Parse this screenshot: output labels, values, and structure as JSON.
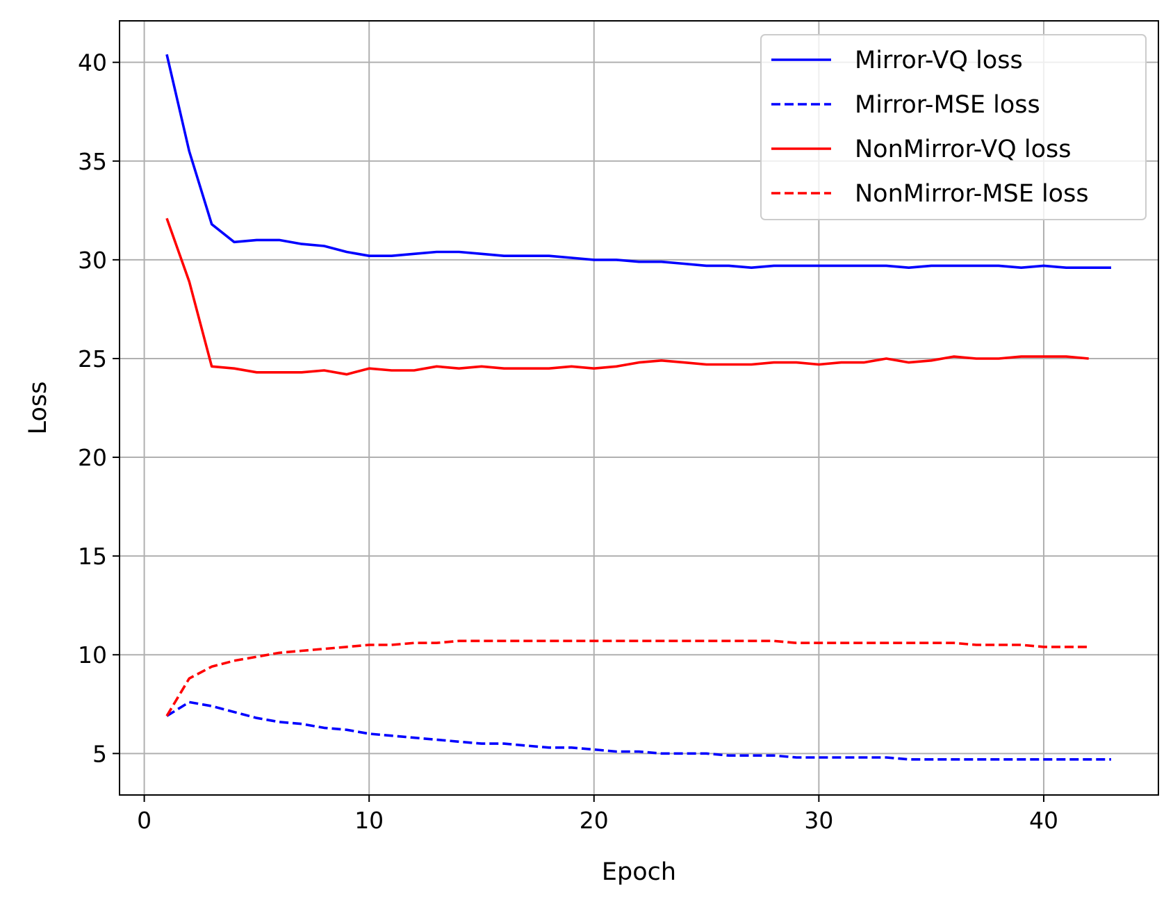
{
  "chart_data": {
    "type": "line",
    "title": "",
    "xlabel": "Epoch",
    "ylabel": "Loss",
    "xlim": [
      -1.1,
      45.1
    ],
    "ylim": [
      2.9,
      42.1
    ],
    "grid": true,
    "legend_position": "upper right",
    "xticks": [
      0,
      10,
      20,
      30,
      40
    ],
    "xtick_labels": [
      "0",
      "10",
      "20",
      "30",
      "40"
    ],
    "yticks": [
      5,
      10,
      15,
      20,
      25,
      30,
      35,
      40
    ],
    "ytick_labels": [
      "5",
      "10",
      "15",
      "20",
      "25",
      "30",
      "35",
      "40"
    ],
    "series": [
      {
        "name": "Mirror-VQ loss",
        "color": "#0000ff",
        "style": "solid",
        "x": [
          1,
          2,
          3,
          4,
          5,
          6,
          7,
          8,
          9,
          10,
          11,
          12,
          13,
          14,
          15,
          16,
          17,
          18,
          19,
          20,
          21,
          22,
          23,
          24,
          25,
          26,
          27,
          28,
          29,
          30,
          31,
          32,
          33,
          34,
          35,
          36,
          37,
          38,
          39,
          40,
          41,
          42,
          43
        ],
        "values": [
          40.4,
          35.5,
          31.8,
          30.9,
          31.0,
          31.0,
          30.8,
          30.7,
          30.4,
          30.2,
          30.2,
          30.3,
          30.4,
          30.4,
          30.3,
          30.2,
          30.2,
          30.2,
          30.1,
          30.0,
          30.0,
          29.9,
          29.9,
          29.8,
          29.7,
          29.7,
          29.6,
          29.7,
          29.7,
          29.7,
          29.7,
          29.7,
          29.7,
          29.6,
          29.7,
          29.7,
          29.7,
          29.7,
          29.6,
          29.7,
          29.6,
          29.6,
          29.6
        ]
      },
      {
        "name": "Mirror-MSE loss",
        "color": "#0000ff",
        "style": "dashed",
        "x": [
          1,
          2,
          3,
          4,
          5,
          6,
          7,
          8,
          9,
          10,
          11,
          12,
          13,
          14,
          15,
          16,
          17,
          18,
          19,
          20,
          21,
          22,
          23,
          24,
          25,
          26,
          27,
          28,
          29,
          30,
          31,
          32,
          33,
          34,
          35,
          36,
          37,
          38,
          39,
          40,
          41,
          42,
          43
        ],
        "values": [
          6.9,
          7.6,
          7.4,
          7.1,
          6.8,
          6.6,
          6.5,
          6.3,
          6.2,
          6.0,
          5.9,
          5.8,
          5.7,
          5.6,
          5.5,
          5.5,
          5.4,
          5.3,
          5.3,
          5.2,
          5.1,
          5.1,
          5.0,
          5.0,
          5.0,
          4.9,
          4.9,
          4.9,
          4.8,
          4.8,
          4.8,
          4.8,
          4.8,
          4.7,
          4.7,
          4.7,
          4.7,
          4.7,
          4.7,
          4.7,
          4.7,
          4.7,
          4.7
        ]
      },
      {
        "name": "NonMirror-VQ loss",
        "color": "#ff0000",
        "style": "solid",
        "x": [
          1,
          2,
          3,
          4,
          5,
          6,
          7,
          8,
          9,
          10,
          11,
          12,
          13,
          14,
          15,
          16,
          17,
          18,
          19,
          20,
          21,
          22,
          23,
          24,
          25,
          26,
          27,
          28,
          29,
          30,
          31,
          32,
          33,
          34,
          35,
          36,
          37,
          38,
          39,
          40,
          41,
          42
        ],
        "values": [
          32.1,
          28.9,
          24.6,
          24.5,
          24.3,
          24.3,
          24.3,
          24.4,
          24.2,
          24.5,
          24.4,
          24.4,
          24.6,
          24.5,
          24.6,
          24.5,
          24.5,
          24.5,
          24.6,
          24.5,
          24.6,
          24.8,
          24.9,
          24.8,
          24.7,
          24.7,
          24.7,
          24.8,
          24.8,
          24.7,
          24.8,
          24.8,
          25.0,
          24.8,
          24.9,
          25.1,
          25.0,
          25.0,
          25.1,
          25.1,
          25.1,
          25.0
        ]
      },
      {
        "name": "NonMirror-MSE loss",
        "color": "#ff0000",
        "style": "dashed",
        "x": [
          1,
          2,
          3,
          4,
          5,
          6,
          7,
          8,
          9,
          10,
          11,
          12,
          13,
          14,
          15,
          16,
          17,
          18,
          19,
          20,
          21,
          22,
          23,
          24,
          25,
          26,
          27,
          28,
          29,
          30,
          31,
          32,
          33,
          34,
          35,
          36,
          37,
          38,
          39,
          40,
          41,
          42
        ],
        "values": [
          6.9,
          8.8,
          9.4,
          9.7,
          9.9,
          10.1,
          10.2,
          10.3,
          10.4,
          10.5,
          10.5,
          10.6,
          10.6,
          10.7,
          10.7,
          10.7,
          10.7,
          10.7,
          10.7,
          10.7,
          10.7,
          10.7,
          10.7,
          10.7,
          10.7,
          10.7,
          10.7,
          10.7,
          10.6,
          10.6,
          10.6,
          10.6,
          10.6,
          10.6,
          10.6,
          10.6,
          10.5,
          10.5,
          10.5,
          10.4,
          10.4,
          10.4
        ]
      }
    ]
  }
}
